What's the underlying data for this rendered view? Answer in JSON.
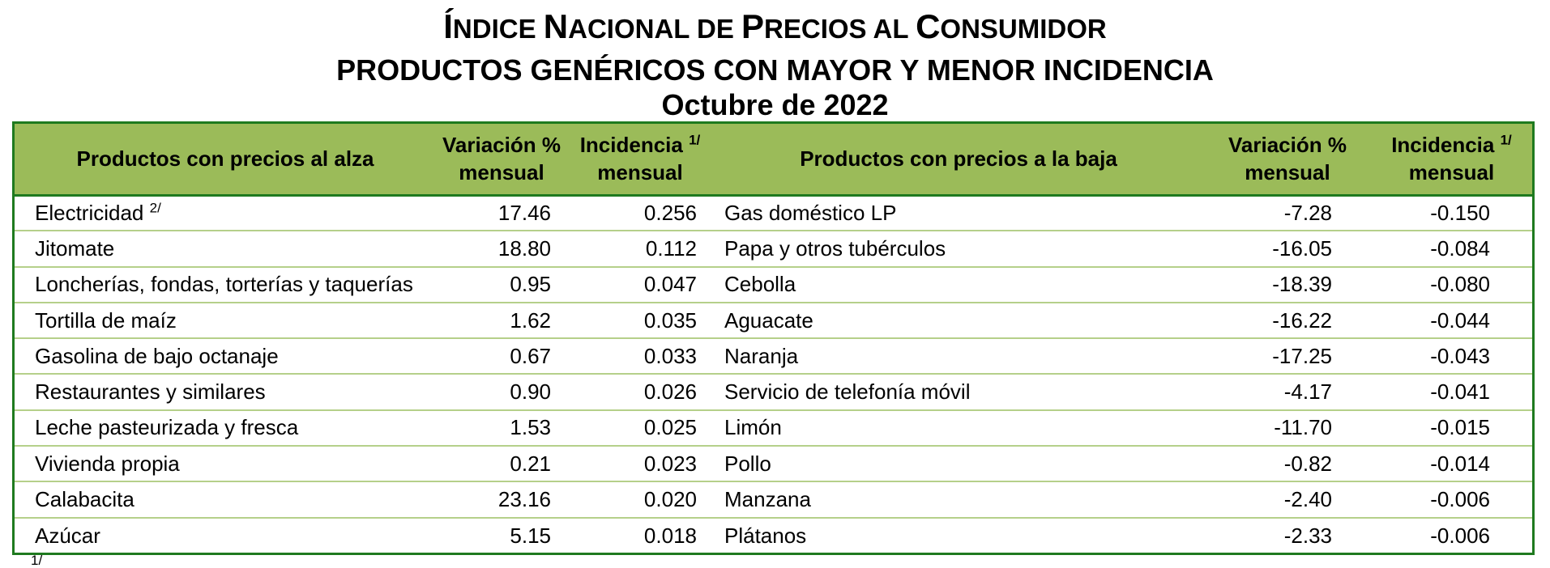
{
  "header": {
    "title_line1_initial1": "Í",
    "title_line1_rest1": "NDICE ",
    "title_line1_initial2": "N",
    "title_line1_rest2": "ACIONAL DE ",
    "title_line1_initial3": "P",
    "title_line1_rest3": "RECIOS AL ",
    "title_line1_initial4": "C",
    "title_line1_rest4": "ONSUMIDOR",
    "title_line2": "PRODUCTOS GENÉRICOS CON MAYOR Y MENOR INCIDENCIA",
    "title_line3": "Octubre de 2022"
  },
  "table": {
    "columns": {
      "up_products": "Productos con precios al alza",
      "up_var_line1": "Variación %",
      "up_var_line2": "mensual",
      "up_inc_line1": "Incidencia",
      "up_inc_sup": "1/",
      "up_inc_line2": "mensual",
      "down_products": "Productos con precios a la baja",
      "down_var_line1": "Variación %",
      "down_var_line2": "mensual",
      "down_inc_line1": "Incidencia",
      "down_inc_sup": "1/",
      "down_inc_line2": "mensual"
    },
    "rows": [
      {
        "up_name": "Electricidad",
        "up_sup": "2/",
        "up_var": "17.46",
        "up_inc": "0.256",
        "down_name": "Gas doméstico LP",
        "down_var": "-7.28",
        "down_inc": "-0.150"
      },
      {
        "up_name": "Jitomate",
        "up_sup": "",
        "up_var": "18.80",
        "up_inc": "0.112",
        "down_name": "Papa y otros tubérculos",
        "down_var": "-16.05",
        "down_inc": "-0.084"
      },
      {
        "up_name": "Loncherías, fondas, torterías y taquerías",
        "up_sup": "",
        "up_var": "0.95",
        "up_inc": "0.047",
        "down_name": "Cebolla",
        "down_var": "-18.39",
        "down_inc": "-0.080"
      },
      {
        "up_name": "Tortilla de maíz",
        "up_sup": "",
        "up_var": "1.62",
        "up_inc": "0.035",
        "down_name": "Aguacate",
        "down_var": "-16.22",
        "down_inc": "-0.044"
      },
      {
        "up_name": "Gasolina de bajo octanaje",
        "up_sup": "",
        "up_var": "0.67",
        "up_inc": "0.033",
        "down_name": "Naranja",
        "down_var": "-17.25",
        "down_inc": "-0.043"
      },
      {
        "up_name": "Restaurantes y similares",
        "up_sup": "",
        "up_var": "0.90",
        "up_inc": "0.026",
        "down_name": "Servicio de telefonía móvil",
        "down_var": "-4.17",
        "down_inc": "-0.041"
      },
      {
        "up_name": "Leche pasteurizada y fresca",
        "up_sup": "",
        "up_var": "1.53",
        "up_inc": "0.025",
        "down_name": "Limón",
        "down_var": "-11.70",
        "down_inc": "-0.015"
      },
      {
        "up_name": "Vivienda propia",
        "up_sup": "",
        "up_var": "0.21",
        "up_inc": "0.023",
        "down_name": "Pollo",
        "down_var": "-0.82",
        "down_inc": "-0.014"
      },
      {
        "up_name": "Calabacita",
        "up_sup": "",
        "up_var": "23.16",
        "up_inc": "0.020",
        "down_name": "Manzana",
        "down_var": "-2.40",
        "down_inc": "-0.006"
      },
      {
        "up_name": "Azúcar",
        "up_sup": "",
        "up_var": "5.15",
        "up_inc": "0.018",
        "down_name": "Plátanos",
        "down_var": "-2.33",
        "down_inc": "-0.006"
      }
    ]
  },
  "footnote": {
    "marker": "1/"
  },
  "colors": {
    "header_bg": "#9bbb59",
    "border": "#1f7a1f",
    "row_divider": "#b5d08a"
  }
}
